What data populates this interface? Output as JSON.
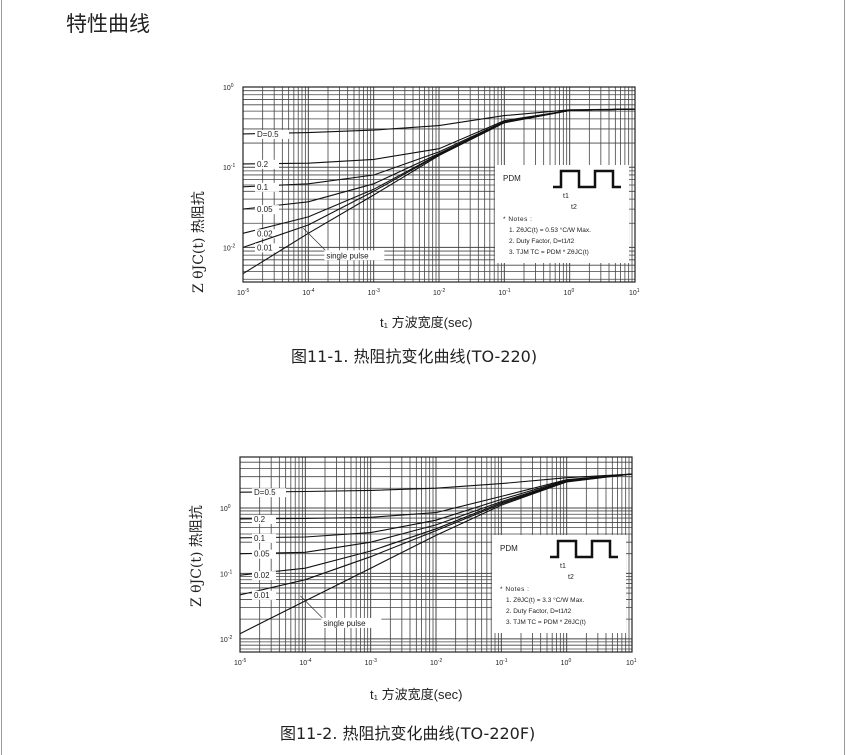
{
  "page_title": "特性曲线",
  "chart_data": [
    {
      "type": "line",
      "caption": "图11-1. 热阻抗变化曲线(TO-220)",
      "xlabel": "t₁ 方波宽度(sec)",
      "ylabel": "Z θJC(t) 热阻抗",
      "xscale": "log",
      "yscale": "log",
      "xlim": [
        1e-05,
        10
      ],
      "ylim": [
        0.0037,
        1
      ],
      "x_ticks": [
        {
          "v": 1e-05,
          "b": "10",
          "e": "-5"
        },
        {
          "v": 0.0001,
          "b": "10",
          "e": "-4"
        },
        {
          "v": 0.001,
          "b": "10",
          "e": "-3"
        },
        {
          "v": 0.01,
          "b": "10",
          "e": "-2"
        },
        {
          "v": 0.1,
          "b": "10",
          "e": "-1"
        },
        {
          "v": 1,
          "b": "10",
          "e": "0"
        },
        {
          "v": 10,
          "b": "10",
          "e": "1"
        }
      ],
      "y_ticks": [
        {
          "v": 1,
          "b": "10",
          "e": "0"
        },
        {
          "v": 0.1,
          "b": "10",
          "e": "-1"
        },
        {
          "v": 0.01,
          "b": "10",
          "e": "-2"
        }
      ],
      "grid": true,
      "x": [
        1e-05,
        0.0001,
        0.001,
        0.01,
        0.1,
        1,
        10
      ],
      "series": [
        {
          "name": "D=0.5",
          "values": [
            0.26,
            0.27,
            0.29,
            0.33,
            0.44,
            0.52,
            0.53
          ]
        },
        {
          "name": "0.2",
          "values": [
            0.11,
            0.112,
            0.125,
            0.17,
            0.38,
            0.51,
            0.53
          ]
        },
        {
          "name": "0.1",
          "values": [
            0.057,
            0.062,
            0.08,
            0.155,
            0.37,
            0.51,
            0.53
          ]
        },
        {
          "name": "0.05",
          "values": [
            0.03,
            0.037,
            0.062,
            0.148,
            0.365,
            0.51,
            0.53
          ]
        },
        {
          "name": "0.02",
          "values": [
            0.015,
            0.024,
            0.053,
            0.145,
            0.362,
            0.51,
            0.53
          ]
        },
        {
          "name": "0.01",
          "values": [
            0.01,
            0.019,
            0.05,
            0.143,
            0.36,
            0.51,
            0.53
          ]
        },
        {
          "name": "single pulse",
          "values": [
            0.0047,
            0.015,
            0.045,
            0.14,
            0.358,
            0.51,
            0.53
          ]
        }
      ],
      "notes": {
        "pdm": "PDM",
        "t1": "t1",
        "t2": "t2",
        "header": "* Notes :",
        "line1": "1. ZθJC(t) = 0.53 °C/W Max.",
        "line2": "2. Duty Factor, D=t1/t2",
        "line3": "3. TJM   TC = PDM * ZθJC(t)"
      }
    },
    {
      "type": "line",
      "caption": "图11-2. 热阻抗变化曲线(TO-220F)",
      "xlabel": "t₁ 方波宽度(sec)",
      "ylabel": "Z θJC(t) 热阻抗",
      "xscale": "log",
      "yscale": "log",
      "xlim": [
        1e-05,
        10
      ],
      "ylim": [
        0.0063,
        6
      ],
      "x_ticks": [
        {
          "v": 1e-05,
          "b": "10",
          "e": "-5"
        },
        {
          "v": 0.0001,
          "b": "10",
          "e": "-4"
        },
        {
          "v": 0.001,
          "b": "10",
          "e": "-3"
        },
        {
          "v": 0.01,
          "b": "10",
          "e": "-2"
        },
        {
          "v": 0.1,
          "b": "10",
          "e": "-1"
        },
        {
          "v": 1,
          "b": "10",
          "e": "0"
        },
        {
          "v": 10,
          "b": "10",
          "e": "1"
        }
      ],
      "y_ticks": [
        {
          "v": 1,
          "b": "10",
          "e": "0"
        },
        {
          "v": 0.1,
          "b": "10",
          "e": "-1"
        },
        {
          "v": 0.01,
          "b": "10",
          "e": "-2"
        }
      ],
      "grid": true,
      "x": [
        1e-05,
        0.0001,
        0.001,
        0.01,
        0.1,
        1,
        10
      ],
      "series": [
        {
          "name": "D=0.5",
          "values": [
            1.74,
            1.78,
            1.85,
            2.0,
            2.35,
            2.9,
            3.3
          ]
        },
        {
          "name": "0.2",
          "values": [
            0.68,
            0.69,
            0.72,
            0.85,
            1.5,
            2.7,
            3.3
          ]
        },
        {
          "name": "0.1",
          "values": [
            0.35,
            0.36,
            0.42,
            0.65,
            1.35,
            2.65,
            3.3
          ]
        },
        {
          "name": "0.05",
          "values": [
            0.2,
            0.21,
            0.3,
            0.55,
            1.25,
            2.6,
            3.3
          ]
        },
        {
          "name": "0.02",
          "values": [
            0.094,
            0.12,
            0.22,
            0.48,
            1.2,
            2.55,
            3.3
          ]
        },
        {
          "name": "0.01",
          "values": [
            0.047,
            0.08,
            0.18,
            0.45,
            1.15,
            2.52,
            3.3
          ]
        },
        {
          "name": "single pulse",
          "values": [
            0.012,
            0.038,
            0.12,
            0.38,
            1.1,
            2.5,
            3.3
          ]
        }
      ],
      "notes": {
        "pdm": "PDM",
        "t1": "t1",
        "t2": "t2",
        "header": "* Notes :",
        "line1": "1. ZθJC(t) = 3.3 °C/W Max.",
        "line2": "2. Duty Factor, D=t1/t2",
        "line3": "3. TJM   TC = PDM * ZθJC(t)"
      }
    }
  ]
}
